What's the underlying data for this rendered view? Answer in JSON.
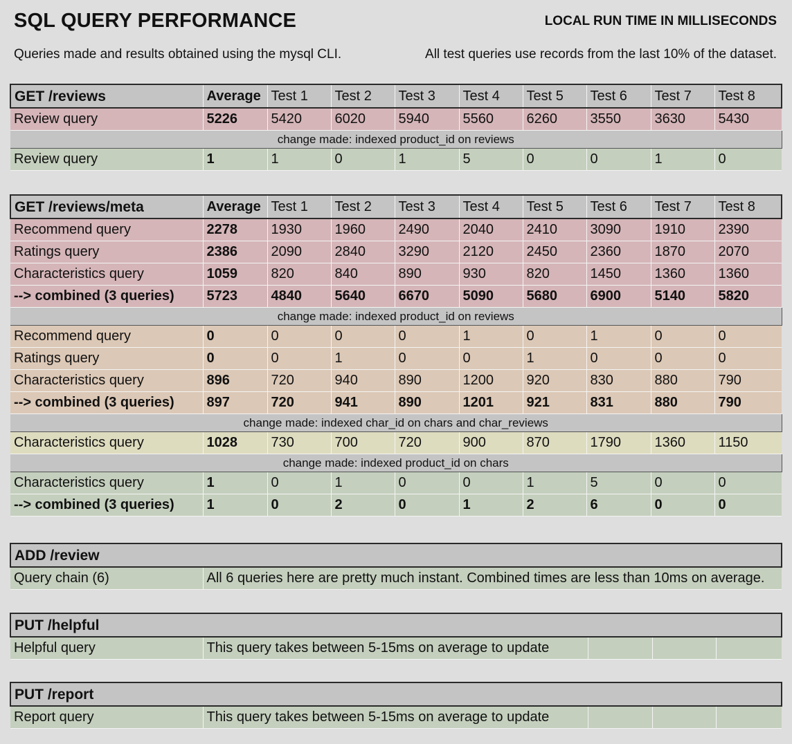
{
  "header": {
    "title": "SQL QUERY PERFORMANCE",
    "subtitle": "LOCAL RUN TIME IN MILLISECONDS",
    "note_left": "Queries made and results obtained using the mysql CLI.",
    "note_right": "All test queries use records from the last 10% of the dataset."
  },
  "columns": [
    "Average",
    "Test 1",
    "Test 2",
    "Test 3",
    "Test 4",
    "Test 5",
    "Test 6",
    "Test 7",
    "Test 8"
  ],
  "colors": {
    "slow": "#d5b5b8",
    "medium": "#dcc8b6",
    "warn": "#dedcbf",
    "fast": "#c4cfbd",
    "header": "#c4c4c4",
    "background": "#dedede"
  },
  "reviews": {
    "title": "GET /reviews",
    "before": [
      {
        "label": "Review query",
        "values": [
          "5226",
          "5420",
          "6020",
          "5940",
          "5560",
          "6260",
          "3550",
          "3630",
          "5430"
        ]
      }
    ],
    "change1": "change made: indexed product_id on reviews",
    "after": [
      {
        "label": "Review query",
        "values": [
          "1",
          "1",
          "0",
          "1",
          "5",
          "0",
          "0",
          "1",
          "0"
        ]
      }
    ]
  },
  "meta": {
    "title": "GET /reviews/meta",
    "before": [
      {
        "label": "Recommend query",
        "values": [
          "2278",
          "1930",
          "1960",
          "2490",
          "2040",
          "2410",
          "3090",
          "1910",
          "2390"
        ]
      },
      {
        "label": "Ratings query",
        "values": [
          "2386",
          "2090",
          "2840",
          "3290",
          "2120",
          "2450",
          "2360",
          "1870",
          "2070"
        ]
      },
      {
        "label": "Characteristics query",
        "values": [
          "1059",
          "820",
          "840",
          "890",
          "930",
          "820",
          "1450",
          "1360",
          "1360"
        ]
      },
      {
        "label": "--> combined (3 queries)",
        "values": [
          "5723",
          "4840",
          "5640",
          "6670",
          "5090",
          "5680",
          "6900",
          "5140",
          "5820"
        ]
      }
    ],
    "change1": "change made: indexed product_id on reviews",
    "after1": [
      {
        "label": "Recommend query",
        "values": [
          "0",
          "0",
          "0",
          "0",
          "1",
          "0",
          "1",
          "0",
          "0"
        ]
      },
      {
        "label": "Ratings query",
        "values": [
          "0",
          "0",
          "1",
          "0",
          "0",
          "1",
          "0",
          "0",
          "0"
        ]
      },
      {
        "label": "Characteristics query",
        "values": [
          "896",
          "720",
          "940",
          "890",
          "1200",
          "920",
          "830",
          "880",
          "790"
        ]
      },
      {
        "label": "--> combined (3 queries)",
        "values": [
          "897",
          "720",
          "941",
          "890",
          "1201",
          "921",
          "831",
          "880",
          "790"
        ]
      }
    ],
    "change2": "change made: indexed char_id on chars and char_reviews",
    "after2": [
      {
        "label": "Characteristics query",
        "values": [
          "1028",
          "730",
          "700",
          "720",
          "900",
          "870",
          "1790",
          "1360",
          "1150"
        ]
      }
    ],
    "change3": "change made: indexed product_id on chars",
    "after3": [
      {
        "label": "Characteristics query",
        "values": [
          "1",
          "0",
          "1",
          "0",
          "0",
          "1",
          "5",
          "0",
          "0"
        ]
      },
      {
        "label": "--> combined (3 queries)",
        "values": [
          "1",
          "0",
          "2",
          "0",
          "1",
          "2",
          "6",
          "0",
          "0"
        ]
      }
    ]
  },
  "add_review": {
    "title": "ADD /review",
    "label": "Query chain (6)",
    "text": "All 6 queries here are pretty much instant. Combined times are less than 10ms on average."
  },
  "helpful": {
    "title": "PUT /helpful",
    "label": "Helpful query",
    "text": "This query takes between 5-15ms on average to update"
  },
  "report": {
    "title": "PUT /report",
    "label": "Report query",
    "text": "This query takes between 5-15ms on average to update"
  }
}
